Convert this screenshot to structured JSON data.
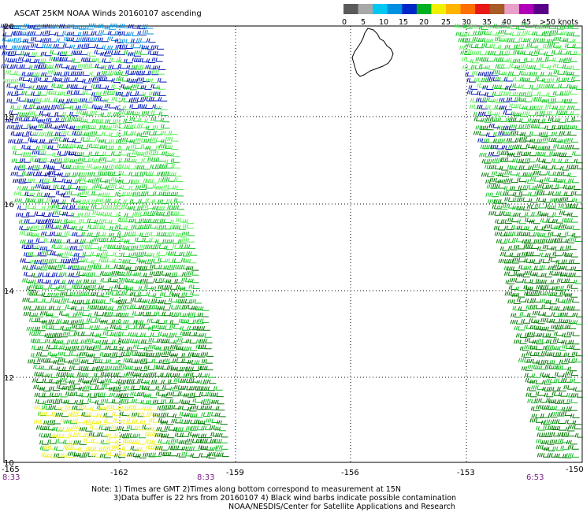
{
  "title": "ASCAT 25KM NOAA Winds 20160107 ascending",
  "legend": {
    "colors": [
      "#5a5a5a",
      "#a8a8a8",
      "#00c8f0",
      "#0090e0",
      "#0028c8",
      "#00b020",
      "#f0f000",
      "#ffb400",
      "#ff6e00",
      "#e81818",
      "#a85a28",
      "#e8a0c8",
      "#b000b8",
      "#5a0088"
    ],
    "labels": [
      "0",
      "5",
      "10",
      "15",
      "20",
      "25",
      "30",
      "35",
      "40",
      "45",
      ">50 knots"
    ]
  },
  "lat_labels": [
    "20",
    "18",
    "16",
    "14",
    "12",
    "10"
  ],
  "lon_labels": [
    "-165",
    "-162",
    "-159",
    "-156",
    "-153",
    "-150"
  ],
  "times": [
    "8:33",
    "8:33",
    "6:53"
  ],
  "notes": [
    "Note: 1) Times are GMT 2)Times along bottom correspond to measurement at 15N",
    "3)Data buffer is 22 hrs from 20160107 4) Black wind barbs indicate possible contamination",
    "NOAA/NESDIS/Center for Satellite Applications and Research"
  ],
  "wind_colors": {
    "dark_green": "#007800",
    "green": "#10c020",
    "light_green": "#50f050",
    "blue": "#0018b8",
    "dark_blue": "#0000a0",
    "cyan_blue": "#0090e0",
    "yellow": "#f0f020"
  }
}
